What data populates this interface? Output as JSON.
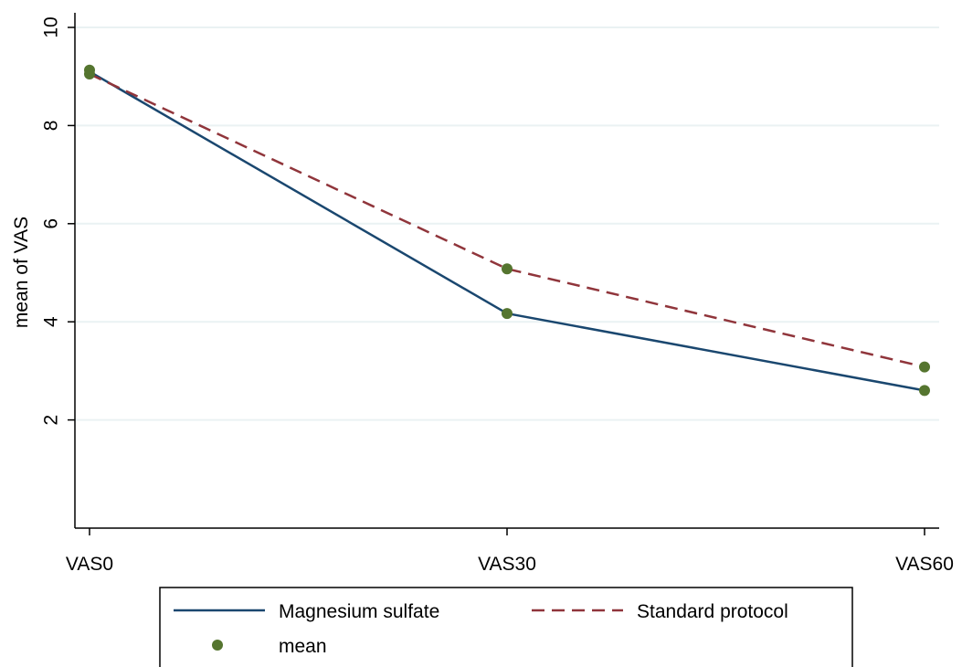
{
  "chart_data": {
    "type": "line",
    "categories": [
      "VAS0",
      "VAS30",
      "VAS60"
    ],
    "series": [
      {
        "name": "Magnesium sulfate",
        "values": [
          9.1,
          4.17,
          2.6
        ],
        "color": "#1a476f",
        "style": "solid"
      },
      {
        "name": "Standard protocol",
        "values": [
          9.05,
          5.08,
          3.08
        ],
        "color": "#90353b",
        "style": "dashed"
      }
    ],
    "markers": {
      "name": "mean",
      "color": "#55752f",
      "points": [
        {
          "category": "VAS0",
          "value": 9.13
        },
        {
          "category": "VAS0",
          "value": 9.05
        },
        {
          "category": "VAS30",
          "value": 5.08
        },
        {
          "category": "VAS30",
          "value": 4.17
        },
        {
          "category": "VAS60",
          "value": 3.08
        },
        {
          "category": "VAS60",
          "value": 2.6
        }
      ]
    },
    "title": "",
    "xlabel": "",
    "ylabel": "mean of VAS",
    "ylim": [
      0,
      10
    ],
    "yticks": [
      2,
      4,
      6,
      8,
      10
    ],
    "grid": true,
    "gridline_color": "#eaf2f3",
    "legend_position": "bottom"
  }
}
